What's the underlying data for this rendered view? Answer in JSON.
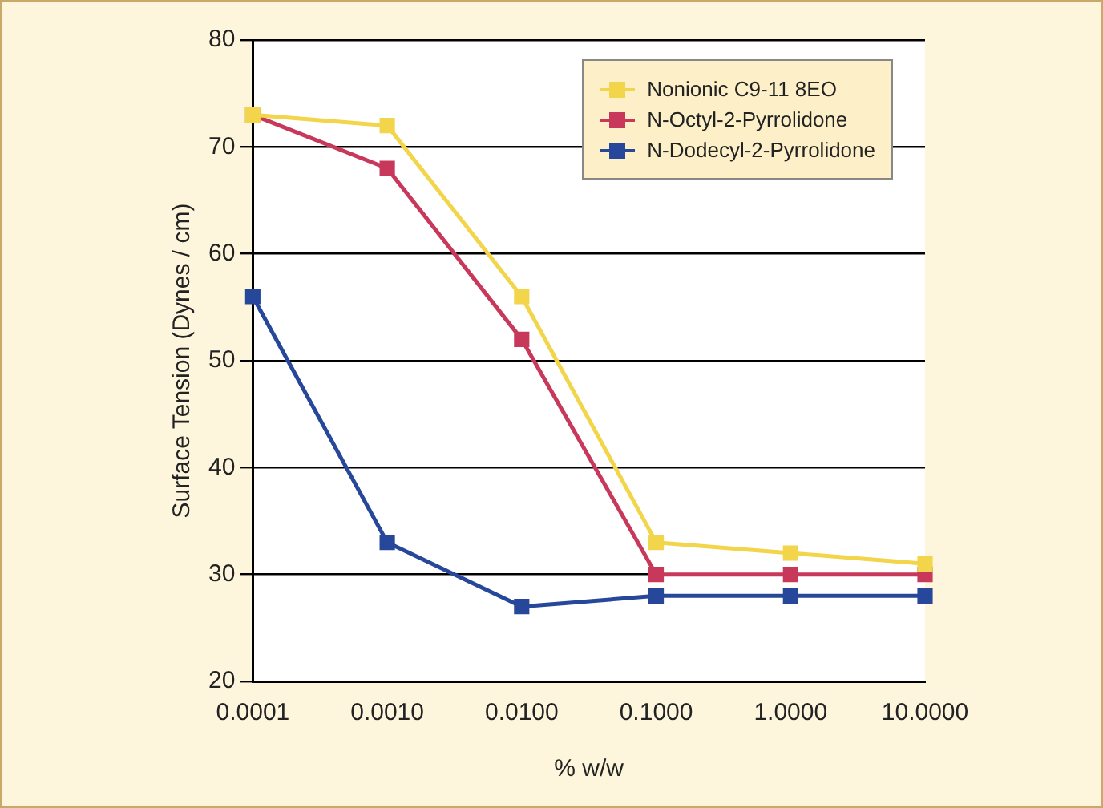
{
  "chart_data": {
    "type": "line",
    "xlabel": "% w/w",
    "ylabel": "Surface Tension (Dynes / cm)",
    "categories": [
      "0.0001",
      "0.0010",
      "0.0100",
      "0.1000",
      "1.0000",
      "10.0000"
    ],
    "series": [
      {
        "name": "Nonionic C9-11 8EO",
        "color": "#f2d54a",
        "values": [
          73,
          72,
          56,
          33,
          32,
          31
        ]
      },
      {
        "name": "N-Octyl-2-Pyrrolidone",
        "color": "#c8385a",
        "values": [
          73,
          68,
          52,
          30,
          30,
          30
        ]
      },
      {
        "name": "N-Dodecyl-2-Pyrrolidone",
        "color": "#27479a",
        "values": [
          56,
          33,
          27,
          28,
          28,
          28
        ]
      }
    ],
    "ylim": [
      20,
      80
    ],
    "yticks": [
      20,
      30,
      40,
      50,
      60,
      70,
      80
    ],
    "grid": "y",
    "legend": "top right",
    "marker": "square",
    "line_style": "solid"
  }
}
